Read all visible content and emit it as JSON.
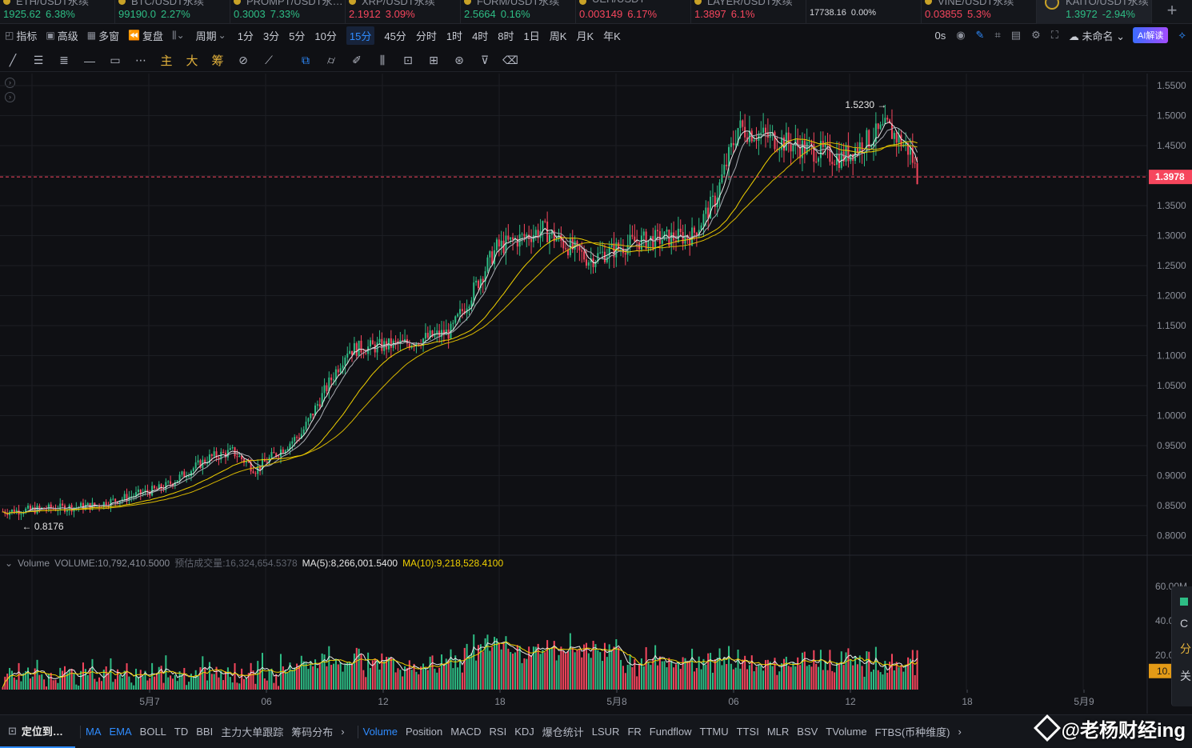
{
  "tickers": [
    {
      "name": "ETH/USDT永续",
      "price": "1925.62",
      "change": "6.38%",
      "dir": "up"
    },
    {
      "name": "BTC/USDT永续",
      "price": "99190.0",
      "change": "2.27%",
      "dir": "up"
    },
    {
      "name": "PROMPT/USDT永…",
      "price": "0.3003",
      "change": "7.33%",
      "dir": "up"
    },
    {
      "name": "XRP/USDT永续",
      "price": "2.1912",
      "change": "3.09%",
      "dir": "dn"
    },
    {
      "name": "FORM/USDT永续",
      "price": "2.5664",
      "change": "0.16%",
      "dir": "up"
    },
    {
      "name": "UEH/USDT",
      "price": "0.003149",
      "change": "6.17%",
      "dir": "dn"
    },
    {
      "name": "LAYER/USDT永续",
      "price": "1.3897",
      "change": "6.1%",
      "dir": "dn"
    },
    {
      "name": "",
      "price": "17738.16",
      "change": "0.00%",
      "dir": "flat"
    },
    {
      "name": "VINE/USDT永续",
      "price": "0.03855",
      "change": "5.3%",
      "dir": "dn"
    },
    {
      "name": "KAITO/USDT永续",
      "price": "1.3972",
      "change": "-2.94%",
      "dir": "up",
      "active": true
    }
  ],
  "menu": {
    "items": [
      "指标",
      "高级",
      "多窗",
      "复盘"
    ],
    "period_label": "周期",
    "timeframes": [
      "1分",
      "3分",
      "5分",
      "10分",
      "15分",
      "45分",
      "分时",
      "1时",
      "4时",
      "8时",
      "1日",
      "周K",
      "月K",
      "年K"
    ],
    "active_timeframe": "15分",
    "countdown": "0s",
    "layout_name": "未命名",
    "ai_label": "AI解读"
  },
  "drawbar": {
    "gold_labels": [
      "主",
      "大",
      "筹"
    ]
  },
  "chart_data": {
    "type": "candlestick",
    "price_axis": {
      "ticks": [
        "1.5500",
        "1.5000",
        "1.4500",
        "1.4000",
        "1.3500",
        "1.3000",
        "1.2500",
        "1.2000",
        "1.1500",
        "1.1000",
        "1.0500",
        "1.0000",
        "0.9500",
        "0.9000",
        "0.8500",
        "0.8000"
      ],
      "range": [
        0.77,
        1.57
      ]
    },
    "current_price": "1.3978",
    "high_label": "1.5230",
    "low_label": "0.8176",
    "x_labels": [
      "5月7",
      "06",
      "12",
      "18",
      "5月8",
      "06",
      "12",
      "18",
      "5月9"
    ],
    "trend_anchors": [
      [
        0,
        0.84
      ],
      [
        40,
        0.85
      ],
      [
        70,
        0.88
      ],
      [
        90,
        0.93
      ],
      [
        100,
        0.94
      ],
      [
        110,
        0.91
      ],
      [
        130,
        0.97
      ],
      [
        150,
        1.11
      ],
      [
        175,
        1.12
      ],
      [
        195,
        1.14
      ],
      [
        215,
        1.28
      ],
      [
        235,
        1.31
      ],
      [
        255,
        1.26
      ],
      [
        275,
        1.29
      ],
      [
        300,
        1.3
      ],
      [
        310,
        1.36
      ],
      [
        320,
        1.48
      ],
      [
        345,
        1.45
      ],
      [
        365,
        1.43
      ],
      [
        385,
        1.48
      ],
      [
        395,
        1.44
      ],
      [
        398,
        1.4
      ]
    ],
    "volume": {
      "label": "Volume",
      "value_text": "VOLUME:10,792,410.5000",
      "estimate_text": "预估成交量:16,324,654.5378",
      "ma5_text": "MA(5):8,266,001.5400",
      "ma10_text": "MA(10):9,218,528.4100",
      "axis_ticks": [
        "60.00M",
        "40.0",
        "20.0"
      ],
      "current_tag": "10."
    },
    "colors": {
      "up": "#2ebd85",
      "down": "#f6465d",
      "ma_white": "#e8e8e8",
      "ma_gray": "#a9acb3",
      "ma_yellow1": "#f0d000",
      "ma_yellow2": "#d9b800",
      "price_tag": "#f6465d"
    }
  },
  "bottombar": {
    "locate": "定位到…",
    "main_indicators": [
      "MA",
      "EMA",
      "BOLL",
      "TD",
      "BBI",
      "主力大单跟踪",
      "筹码分布"
    ],
    "sub_indicators": [
      "Volume",
      "Position",
      "MACD",
      "RSI",
      "KDJ",
      "爆仓统计",
      "LSUR",
      "FR",
      "Fundflow",
      "TTMU",
      "TTSI",
      "MLR",
      "BSV",
      "TVolume",
      "FTBS(币种维度)"
    ]
  },
  "watermark": "@老杨财经ing",
  "side_panel": [
    "C",
    "分",
    "关"
  ]
}
